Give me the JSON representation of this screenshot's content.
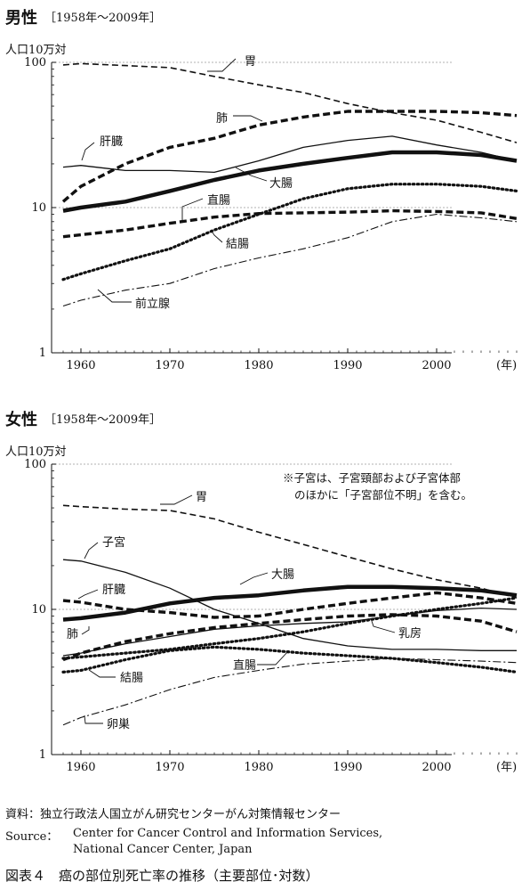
{
  "male": {
    "title": "男性",
    "range": "［1958年～2009年］",
    "unit": "人口10万対"
  },
  "female": {
    "title": "女性",
    "range": "［1958年～2009年］",
    "unit": "人口10万対",
    "note_line1": "※子宮は、子宮頸部および子宮体部",
    "note_line2": "のほかに「子宮部位不明」を含む。"
  },
  "footer": {
    "source_ja": "資料：独立行政法人国立がん研究センターがん対策情報センター",
    "source_en_label": "Source：",
    "source_en_line1": "Center for Cancer Control and Information Services,",
    "source_en_line2": "National Cancer Center, Japan",
    "caption": "図表４　癌の部位別死亡率の推移（主要部位･対数）"
  },
  "chart_data": [
    {
      "type": "line",
      "title": "男性",
      "ylabel": "人口10万対",
      "xlabel": "(年)",
      "y_scale": "log",
      "ylim": [
        1,
        100
      ],
      "xlim": [
        1958,
        2009
      ],
      "x_ticks": [
        1960,
        1970,
        1980,
        1990,
        2000
      ],
      "y_ticks": [
        1,
        10,
        100
      ],
      "x_unit_label": "(年)",
      "grid": "dotted at 10 and 100",
      "series": [
        {
          "name": "胃",
          "style": "dash",
          "x": [
            1958,
            1960,
            1965,
            1970,
            1975,
            1980,
            1985,
            1990,
            1995,
            2000,
            2005,
            2009
          ],
          "y": [
            96,
            98,
            95,
            92,
            80,
            70,
            62,
            52,
            45,
            40,
            33,
            28
          ]
        },
        {
          "name": "肺",
          "style": "heavy-dash",
          "x": [
            1958,
            1960,
            1965,
            1970,
            1975,
            1980,
            1985,
            1990,
            1995,
            2000,
            2005,
            2009
          ],
          "y": [
            11,
            14,
            20,
            26,
            30,
            37,
            42,
            46,
            46,
            46,
            45,
            43
          ]
        },
        {
          "name": "肝臓",
          "style": "solid",
          "x": [
            1958,
            1960,
            1965,
            1970,
            1975,
            1980,
            1985,
            1990,
            1995,
            2000,
            2005,
            2009
          ],
          "y": [
            19,
            19.5,
            18,
            18,
            17.5,
            21,
            26,
            29,
            31,
            27,
            24,
            21
          ]
        },
        {
          "name": "大腸",
          "style": "heavy-solid",
          "x": [
            1958,
            1960,
            1965,
            1970,
            1975,
            1980,
            1985,
            1990,
            1995,
            2000,
            2005,
            2009
          ],
          "y": [
            9.5,
            10,
            11,
            13,
            15.5,
            18,
            20,
            22,
            24,
            24,
            23,
            21
          ]
        },
        {
          "name": "直腸",
          "style": "heavy-dash",
          "x": [
            1958,
            1960,
            1965,
            1970,
            1975,
            1980,
            1985,
            1990,
            1995,
            2000,
            2005,
            2009
          ],
          "y": [
            6.3,
            6.5,
            7,
            7.8,
            8.6,
            9.1,
            9.2,
            9.3,
            9.5,
            9.4,
            9.2,
            8.4
          ]
        },
        {
          "name": "結腸",
          "style": "dotted",
          "x": [
            1958,
            1960,
            1965,
            1970,
            1975,
            1980,
            1985,
            1990,
            1995,
            2000,
            2005,
            2009
          ],
          "y": [
            3.2,
            3.5,
            4.3,
            5.2,
            7,
            9,
            11.5,
            13.5,
            14.5,
            14.5,
            14,
            13
          ]
        },
        {
          "name": "前立腺",
          "style": "dash-dot",
          "x": [
            1958,
            1960,
            1965,
            1970,
            1975,
            1980,
            1985,
            1990,
            1995,
            2000,
            2005,
            2009
          ],
          "y": [
            2.1,
            2.3,
            2.7,
            3,
            3.8,
            4.5,
            5.2,
            6.2,
            8,
            9,
            8.5,
            8
          ]
        }
      ]
    },
    {
      "type": "line",
      "title": "女性",
      "ylabel": "人口10万対",
      "xlabel": "(年)",
      "y_scale": "log",
      "ylim": [
        1,
        100
      ],
      "xlim": [
        1958,
        2009
      ],
      "x_ticks": [
        1960,
        1970,
        1980,
        1990,
        2000
      ],
      "y_ticks": [
        1,
        10,
        100
      ],
      "x_unit_label": "(年)",
      "grid": "dotted at 10 and 100",
      "series": [
        {
          "name": "胃",
          "style": "dash",
          "x": [
            1958,
            1960,
            1965,
            1970,
            1975,
            1980,
            1985,
            1990,
            1995,
            2000,
            2005,
            2009
          ],
          "y": [
            52,
            51,
            49,
            48,
            42,
            34,
            28,
            23,
            19,
            16,
            14,
            12
          ]
        },
        {
          "name": "子宮",
          "style": "solid",
          "x": [
            1958,
            1960,
            1965,
            1970,
            1975,
            1980,
            1985,
            1990,
            1995,
            2000,
            2005,
            2009
          ],
          "y": [
            22,
            21.5,
            18,
            14,
            10,
            8,
            6.3,
            5.6,
            5.3,
            5.3,
            5.2,
            5.2
          ]
        },
        {
          "name": "大腸",
          "style": "heavy-solid",
          "x": [
            1958,
            1960,
            1965,
            1970,
            1975,
            1980,
            1985,
            1990,
            1995,
            2000,
            2005,
            2009
          ],
          "y": [
            8.5,
            8.7,
            9.5,
            11,
            12,
            12.5,
            13.5,
            14.3,
            14.3,
            14,
            13.5,
            12.5
          ]
        },
        {
          "name": "肝臓",
          "style": "heavy-dash",
          "x": [
            1958,
            1960,
            1965,
            1970,
            1975,
            1980,
            1985,
            1990,
            1995,
            2000,
            2005,
            2009
          ],
          "y": [
            11.5,
            11.2,
            10,
            9.5,
            8.8,
            9,
            10,
            11,
            12,
            13,
            12,
            11
          ]
        },
        {
          "name": "肺",
          "style": "heavy-dash",
          "x": [
            1958,
            1960,
            1965,
            1970,
            1975,
            1980,
            1985,
            1990,
            1995,
            2000,
            2005,
            2009
          ],
          "y": [
            4.5,
            5,
            6,
            6.8,
            7.5,
            8,
            8.5,
            9,
            9.2,
            9,
            8.3,
            7
          ]
        },
        {
          "name": "乳房",
          "style": "dotted",
          "x": [
            1958,
            1960,
            1965,
            1970,
            1975,
            1980,
            1985,
            1990,
            1995,
            2000,
            2005,
            2009
          ],
          "y": [
            4.6,
            4.7,
            5,
            5.3,
            5.8,
            6.3,
            7,
            8,
            9,
            10,
            11,
            12
          ]
        },
        {
          "name": "直腸",
          "style": "solid",
          "x": [
            1958,
            1960,
            1965,
            1970,
            1975,
            1980,
            1985,
            1990,
            1995,
            2000,
            2005,
            2009
          ],
          "y": [
            4.8,
            5,
            5.8,
            6.5,
            7.3,
            7.7,
            8,
            8.2,
            9,
            9.8,
            10.2,
            10
          ]
        },
        {
          "name": "結腸",
          "style": "dotted",
          "x": [
            1958,
            1960,
            1965,
            1970,
            1975,
            1980,
            1985,
            1990,
            1995,
            2000,
            2005,
            2009
          ],
          "y": [
            3.7,
            3.8,
            4.5,
            5.2,
            5.5,
            5.3,
            5,
            4.8,
            4.6,
            4.3,
            4,
            3.7
          ]
        },
        {
          "name": "卵巣",
          "style": "dash-dot",
          "x": [
            1958,
            1960,
            1965,
            1970,
            1975,
            1980,
            1985,
            1990,
            1995,
            2000,
            2005,
            2009
          ],
          "y": [
            1.6,
            1.8,
            2.2,
            2.8,
            3.4,
            3.8,
            4.2,
            4.4,
            4.6,
            4.5,
            4.4,
            4.3
          ]
        }
      ]
    }
  ]
}
